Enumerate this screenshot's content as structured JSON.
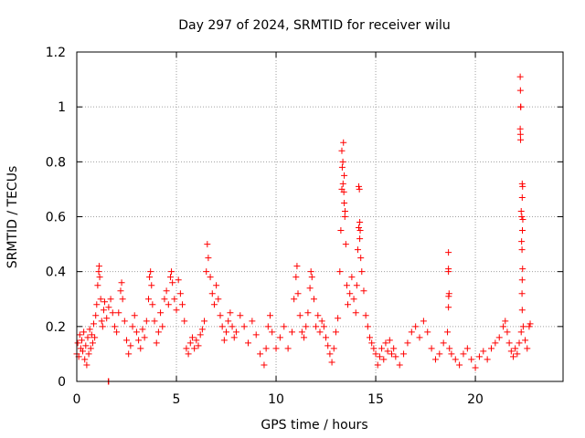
{
  "chart_data": {
    "type": "scatter",
    "title": "Day 297 of 2024, SRMTID for receiver wilu",
    "xlabel": "GPS time / hours",
    "ylabel": "SRMTID / TECUs",
    "xlim": [
      0,
      24.4
    ],
    "ylim": [
      0,
      1.2
    ],
    "xticks": [
      0,
      5,
      10,
      15,
      20
    ],
    "xtick_labels": [
      "0",
      "5",
      "10",
      "15",
      "20"
    ],
    "yticks": [
      0,
      0.2,
      0.4,
      0.6,
      0.8,
      1.0,
      1.2
    ],
    "ytick_labels": [
      "0",
      "0.2",
      "0.4",
      "0.6",
      "0.8",
      "1",
      "1.2"
    ],
    "grid": true,
    "marker": "+",
    "color": "#ff0000",
    "series": [
      {
        "name": "SRMTID",
        "points": [
          [
            0.0,
            0.1
          ],
          [
            0.05,
            0.14
          ],
          [
            0.1,
            0.09
          ],
          [
            0.15,
            0.17
          ],
          [
            0.2,
            0.12
          ],
          [
            0.25,
            0.15
          ],
          [
            0.3,
            0.11
          ],
          [
            0.35,
            0.18
          ],
          [
            0.4,
            0.08
          ],
          [
            0.45,
            0.13
          ],
          [
            0.5,
            0.06
          ],
          [
            0.55,
            0.16
          ],
          [
            0.6,
            0.1
          ],
          [
            0.65,
            0.19
          ],
          [
            0.7,
            0.12
          ],
          [
            0.75,
            0.17
          ],
          [
            0.8,
            0.14
          ],
          [
            0.85,
            0.21
          ],
          [
            0.9,
            0.16
          ],
          [
            0.95,
            0.24
          ],
          [
            1.0,
            0.28
          ],
          [
            1.05,
            0.35
          ],
          [
            1.1,
            0.4
          ],
          [
            1.12,
            0.42
          ],
          [
            1.15,
            0.38
          ],
          [
            1.2,
            0.3
          ],
          [
            1.25,
            0.22
          ],
          [
            1.3,
            0.2
          ],
          [
            1.35,
            0.26
          ],
          [
            1.4,
            0.29
          ],
          [
            1.5,
            0.23
          ],
          [
            1.6,
            0.27
          ],
          [
            1.7,
            0.3
          ],
          [
            1.8,
            0.25
          ],
          [
            1.9,
            0.2
          ],
          [
            2.0,
            0.18
          ],
          [
            2.1,
            0.25
          ],
          [
            2.2,
            0.33
          ],
          [
            2.25,
            0.36
          ],
          [
            2.3,
            0.3
          ],
          [
            2.4,
            0.22
          ],
          [
            2.5,
            0.15
          ],
          [
            2.6,
            0.1
          ],
          [
            2.7,
            0.13
          ],
          [
            2.8,
            0.2
          ],
          [
            2.9,
            0.24
          ],
          [
            3.0,
            0.18
          ],
          [
            3.1,
            0.15
          ],
          [
            3.2,
            0.12
          ],
          [
            3.3,
            0.19
          ],
          [
            3.4,
            0.16
          ],
          [
            3.5,
            0.22
          ],
          [
            3.6,
            0.3
          ],
          [
            3.65,
            0.38
          ],
          [
            3.7,
            0.4
          ],
          [
            3.75,
            0.35
          ],
          [
            3.8,
            0.28
          ],
          [
            3.9,
            0.22
          ],
          [
            4.0,
            0.14
          ],
          [
            4.1,
            0.18
          ],
          [
            4.2,
            0.25
          ],
          [
            4.3,
            0.2
          ],
          [
            4.4,
            0.3
          ],
          [
            4.5,
            0.33
          ],
          [
            4.6,
            0.28
          ],
          [
            4.7,
            0.38
          ],
          [
            4.75,
            0.4
          ],
          [
            4.8,
            0.36
          ],
          [
            4.9,
            0.3
          ],
          [
            5.0,
            0.26
          ],
          [
            5.1,
            0.37
          ],
          [
            5.2,
            0.32
          ],
          [
            5.3,
            0.28
          ],
          [
            5.4,
            0.22
          ],
          [
            5.5,
            0.12
          ],
          [
            5.6,
            0.1
          ],
          [
            5.7,
            0.14
          ],
          [
            5.8,
            0.16
          ],
          [
            5.9,
            0.12
          ],
          [
            6.0,
            0.15
          ],
          [
            6.1,
            0.13
          ],
          [
            6.2,
            0.17
          ],
          [
            6.3,
            0.19
          ],
          [
            6.4,
            0.22
          ],
          [
            6.5,
            0.4
          ],
          [
            6.55,
            0.5
          ],
          [
            6.6,
            0.45
          ],
          [
            6.7,
            0.38
          ],
          [
            6.8,
            0.32
          ],
          [
            6.9,
            0.28
          ],
          [
            7.0,
            0.35
          ],
          [
            7.1,
            0.3
          ],
          [
            7.2,
            0.24
          ],
          [
            7.3,
            0.2
          ],
          [
            7.4,
            0.15
          ],
          [
            7.5,
            0.18
          ],
          [
            7.6,
            0.22
          ],
          [
            7.7,
            0.25
          ],
          [
            7.8,
            0.2
          ],
          [
            7.9,
            0.16
          ],
          [
            8.0,
            0.18
          ],
          [
            8.2,
            0.24
          ],
          [
            8.4,
            0.2
          ],
          [
            8.6,
            0.14
          ],
          [
            8.8,
            0.22
          ],
          [
            9.0,
            0.17
          ],
          [
            9.2,
            0.1
          ],
          [
            9.4,
            0.06
          ],
          [
            9.5,
            0.12
          ],
          [
            9.6,
            0.2
          ],
          [
            9.7,
            0.24
          ],
          [
            9.8,
            0.18
          ],
          [
            10.0,
            0.12
          ],
          [
            10.2,
            0.16
          ],
          [
            10.4,
            0.2
          ],
          [
            10.6,
            0.12
          ],
          [
            10.8,
            0.18
          ],
          [
            10.9,
            0.3
          ],
          [
            11.0,
            0.38
          ],
          [
            11.05,
            0.42
          ],
          [
            11.1,
            0.32
          ],
          [
            11.2,
            0.24
          ],
          [
            11.3,
            0.18
          ],
          [
            11.4,
            0.16
          ],
          [
            11.5,
            0.2
          ],
          [
            11.6,
            0.25
          ],
          [
            11.7,
            0.34
          ],
          [
            11.75,
            0.4
          ],
          [
            11.8,
            0.38
          ],
          [
            11.9,
            0.3
          ],
          [
            12.0,
            0.2
          ],
          [
            12.1,
            0.24
          ],
          [
            12.2,
            0.18
          ],
          [
            12.3,
            0.22
          ],
          [
            12.4,
            0.2
          ],
          [
            12.5,
            0.16
          ],
          [
            12.6,
            0.13
          ],
          [
            12.7,
            0.1
          ],
          [
            12.8,
            0.07
          ],
          [
            12.9,
            0.12
          ],
          [
            13.0,
            0.18
          ],
          [
            13.1,
            0.23
          ],
          [
            13.2,
            0.4
          ],
          [
            13.25,
            0.55
          ],
          [
            13.3,
            0.7
          ],
          [
            13.35,
            0.8
          ],
          [
            13.38,
            0.87
          ],
          [
            13.42,
            0.75
          ],
          [
            13.46,
            0.62
          ],
          [
            13.5,
            0.5
          ],
          [
            13.55,
            0.35
          ],
          [
            13.6,
            0.28
          ],
          [
            13.7,
            0.32
          ],
          [
            13.8,
            0.38
          ],
          [
            13.9,
            0.3
          ],
          [
            14.0,
            0.25
          ],
          [
            14.05,
            0.35
          ],
          [
            14.1,
            0.48
          ],
          [
            14.15,
            0.56
          ],
          [
            14.2,
            0.52
          ],
          [
            14.25,
            0.45
          ],
          [
            14.3,
            0.4
          ],
          [
            14.4,
            0.33
          ],
          [
            14.5,
            0.24
          ],
          [
            14.6,
            0.2
          ],
          [
            14.7,
            0.16
          ],
          [
            14.8,
            0.14
          ],
          [
            14.9,
            0.12
          ],
          [
            15.0,
            0.1
          ],
          [
            15.1,
            0.06
          ],
          [
            15.2,
            0.09
          ],
          [
            15.3,
            0.12
          ],
          [
            15.4,
            0.08
          ],
          [
            15.5,
            0.14
          ],
          [
            15.6,
            0.11
          ],
          [
            15.7,
            0.15
          ],
          [
            15.8,
            0.1
          ],
          [
            15.9,
            0.12
          ],
          [
            16.0,
            0.09
          ],
          [
            16.2,
            0.06
          ],
          [
            16.4,
            0.1
          ],
          [
            16.6,
            0.14
          ],
          [
            16.8,
            0.18
          ],
          [
            17.0,
            0.2
          ],
          [
            17.2,
            0.16
          ],
          [
            17.4,
            0.22
          ],
          [
            17.6,
            0.18
          ],
          [
            17.8,
            0.12
          ],
          [
            18.0,
            0.08
          ],
          [
            18.2,
            0.1
          ],
          [
            18.4,
            0.14
          ],
          [
            18.6,
            0.18
          ],
          [
            18.7,
            0.12
          ],
          [
            18.8,
            0.1
          ],
          [
            19.0,
            0.08
          ],
          [
            19.2,
            0.06
          ],
          [
            19.4,
            0.1
          ],
          [
            19.6,
            0.12
          ],
          [
            19.8,
            0.08
          ],
          [
            20.0,
            0.05
          ],
          [
            20.2,
            0.09
          ],
          [
            20.4,
            0.11
          ],
          [
            20.6,
            0.08
          ],
          [
            20.8,
            0.12
          ],
          [
            21.0,
            0.14
          ],
          [
            21.2,
            0.16
          ],
          [
            21.4,
            0.2
          ],
          [
            21.5,
            0.22
          ],
          [
            21.6,
            0.18
          ],
          [
            21.7,
            0.14
          ],
          [
            21.8,
            0.11
          ],
          [
            21.9,
            0.09
          ],
          [
            22.0,
            0.12
          ],
          [
            22.1,
            0.1
          ],
          [
            22.2,
            0.14
          ],
          [
            22.3,
            0.18
          ],
          [
            22.4,
            0.2
          ],
          [
            22.5,
            0.15
          ],
          [
            22.6,
            0.12
          ],
          [
            22.7,
            0.2
          ],
          [
            22.75,
            0.21
          ],
          [
            1.6,
            0.0
          ],
          [
            1.58,
            0.0
          ],
          [
            18.65,
            0.47
          ],
          [
            18.65,
            0.4
          ],
          [
            18.65,
            0.41
          ],
          [
            18.68,
            0.32
          ],
          [
            18.66,
            0.31
          ],
          [
            18.65,
            0.27
          ],
          [
            14.15,
            0.71
          ],
          [
            14.18,
            0.7
          ],
          [
            14.2,
            0.58
          ],
          [
            14.22,
            0.55
          ],
          [
            13.3,
            0.84
          ],
          [
            13.32,
            0.78
          ],
          [
            13.36,
            0.72
          ],
          [
            13.4,
            0.69
          ],
          [
            13.42,
            0.65
          ],
          [
            13.45,
            0.6
          ],
          [
            22.25,
            1.11
          ],
          [
            22.26,
            1.06
          ],
          [
            22.27,
            1.0
          ],
          [
            22.28,
            1.0
          ],
          [
            22.25,
            0.92
          ],
          [
            22.26,
            0.9
          ],
          [
            22.27,
            0.88
          ],
          [
            22.35,
            0.72
          ],
          [
            22.37,
            0.71
          ],
          [
            22.35,
            0.67
          ],
          [
            22.3,
            0.62
          ],
          [
            22.33,
            0.6
          ],
          [
            22.38,
            0.59
          ],
          [
            22.36,
            0.55
          ],
          [
            22.32,
            0.51
          ],
          [
            22.34,
            0.48
          ],
          [
            22.37,
            0.41
          ],
          [
            22.35,
            0.37
          ],
          [
            22.34,
            0.32
          ],
          [
            22.35,
            0.26
          ]
        ]
      }
    ]
  }
}
